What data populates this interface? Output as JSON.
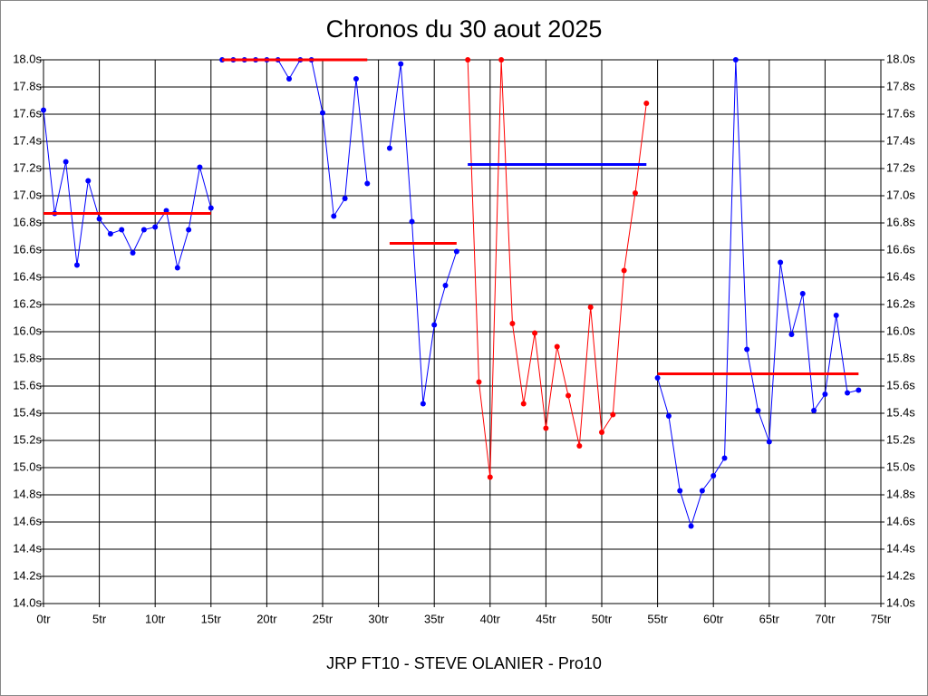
{
  "chart_data": {
    "type": "line",
    "title": "Chronos du 30 aout 2025",
    "x_label": "JRP FT10 - STEVE OLANIER - Pro10",
    "xlim": [
      0,
      75
    ],
    "xticks": [
      {
        "value": 0,
        "label": "0tr"
      },
      {
        "value": 5,
        "label": "5tr"
      },
      {
        "value": 10,
        "label": "10tr"
      },
      {
        "value": 15,
        "label": "15tr"
      },
      {
        "value": 20,
        "label": "20tr"
      },
      {
        "value": 25,
        "label": "25tr"
      },
      {
        "value": 30,
        "label": "30tr"
      },
      {
        "value": 35,
        "label": "35tr"
      },
      {
        "value": 40,
        "label": "40tr"
      },
      {
        "value": 45,
        "label": "45tr"
      },
      {
        "value": 50,
        "label": "50tr"
      },
      {
        "value": 55,
        "label": "55tr"
      },
      {
        "value": 60,
        "label": "60tr"
      },
      {
        "value": 65,
        "label": "65tr"
      },
      {
        "value": 70,
        "label": "70tr"
      },
      {
        "value": 75,
        "label": "75tr"
      }
    ],
    "ylim": [
      14,
      18
    ],
    "yticks": [
      {
        "value": 14,
        "label": "14.0s"
      },
      {
        "value": 14.2,
        "label": "14.2s"
      },
      {
        "value": 14.4,
        "label": "14.4s"
      },
      {
        "value": 14.6,
        "label": "14.6s"
      },
      {
        "value": 14.8,
        "label": "14.8s"
      },
      {
        "value": 15,
        "label": "15.0s"
      },
      {
        "value": 15.2,
        "label": "15.2s"
      },
      {
        "value": 15.4,
        "label": "15.4s"
      },
      {
        "value": 15.6,
        "label": "15.6s"
      },
      {
        "value": 15.8,
        "label": "15.8s"
      },
      {
        "value": 16,
        "label": "16.0s"
      },
      {
        "value": 16.2,
        "label": "16.2s"
      },
      {
        "value": 16.4,
        "label": "16.4s"
      },
      {
        "value": 16.6,
        "label": "16.6s"
      },
      {
        "value": 16.8,
        "label": "16.8s"
      },
      {
        "value": 17,
        "label": "17.0s"
      },
      {
        "value": 17.2,
        "label": "17.2s"
      },
      {
        "value": 17.4,
        "label": "17.4s"
      },
      {
        "value": 17.6,
        "label": "17.6s"
      },
      {
        "value": 17.8,
        "label": "17.8s"
      },
      {
        "value": 18,
        "label": "18.0s"
      }
    ],
    "grid": true,
    "series": [
      {
        "color": "#0000ff",
        "average_color": "#ff0000",
        "average": 16.87,
        "average_x": [
          0,
          15
        ],
        "x": [
          0,
          1,
          2,
          3,
          4,
          5,
          6,
          7,
          8,
          9,
          10,
          11,
          12,
          13,
          14,
          15
        ],
        "values": [
          17.63,
          16.87,
          17.25,
          16.49,
          17.11,
          16.83,
          16.72,
          16.75,
          16.58,
          16.75,
          16.77,
          16.89,
          16.47,
          16.75,
          17.21,
          16.91
        ]
      },
      {
        "color": "#0000ff",
        "average_color": "#ff0000",
        "average": 18,
        "average_x": [
          16,
          29
        ],
        "x": [
          16,
          17,
          18,
          19,
          20,
          21,
          22,
          23,
          24,
          25,
          26,
          27,
          28,
          29
        ],
        "values": [
          18,
          18,
          18,
          18,
          18,
          18,
          17.86,
          18,
          18,
          17.61,
          16.85,
          16.98,
          17.86,
          17.09
        ]
      },
      {
        "color": "#0000ff",
        "average_color": "#ff0000",
        "average": 16.65,
        "average_x": [
          31,
          37
        ],
        "x": [
          31,
          32,
          33,
          34,
          35,
          36,
          37
        ],
        "values": [
          17.35,
          17.97,
          16.81,
          15.47,
          16.05,
          16.34,
          16.59
        ]
      },
      {
        "color": "#ff0000",
        "average_color": "#0000ff",
        "average": 17.23,
        "average_x": [
          38,
          54
        ],
        "x": [
          38,
          39,
          40,
          41,
          42,
          43,
          44,
          45,
          46,
          47,
          48,
          49,
          50,
          51,
          52,
          53,
          54
        ],
        "values": [
          18,
          15.63,
          14.93,
          18,
          16.06,
          15.47,
          15.99,
          15.29,
          15.89,
          15.53,
          15.16,
          16.18,
          15.26,
          15.39,
          16.45,
          17.02,
          17.68
        ]
      },
      {
        "color": "#0000ff",
        "average_color": "#ff0000",
        "average": 15.69,
        "average_x": [
          55,
          73
        ],
        "x": [
          55,
          56,
          57,
          58,
          59,
          60,
          61,
          62,
          63,
          64,
          65,
          66,
          67,
          68,
          69,
          70,
          71,
          72,
          73
        ],
        "values": [
          15.66,
          15.38,
          14.83,
          14.57,
          14.83,
          14.94,
          15.07,
          18,
          15.87,
          15.42,
          15.19,
          16.51,
          15.98,
          16.28,
          15.42,
          15.54,
          16.12,
          15.55,
          15.57
        ]
      }
    ]
  }
}
